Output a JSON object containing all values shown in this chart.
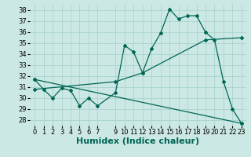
{
  "title": "",
  "xlabel": "Humidex (Indice chaleur)",
  "ylabel": "",
  "background_color": "#cce8e4",
  "grid_color": "#aad4ce",
  "line_color": "#006655",
  "xlim": [
    -0.5,
    23.5
  ],
  "ylim": [
    27.5,
    38.5
  ],
  "yticks": [
    28,
    29,
    30,
    31,
    32,
    33,
    34,
    35,
    36,
    37,
    38
  ],
  "xtick_vals": [
    0,
    1,
    2,
    3,
    4,
    5,
    6,
    7,
    9,
    10,
    11,
    12,
    13,
    14,
    15,
    16,
    17,
    18,
    19,
    20,
    21,
    22,
    23
  ],
  "xtick_labels": [
    "0",
    "1",
    "2",
    "3",
    "4",
    "5",
    "6",
    "7",
    "9",
    "10",
    "11",
    "12",
    "13",
    "14",
    "15",
    "16",
    "17",
    "18",
    "19",
    "20",
    "21",
    "22",
    "23"
  ],
  "series1_x": [
    0,
    1,
    2,
    3,
    4,
    5,
    6,
    7,
    9,
    10,
    11,
    12,
    13,
    14,
    15,
    16,
    17,
    18,
    19,
    20,
    21,
    22,
    23
  ],
  "series1_y": [
    31.7,
    30.8,
    30.0,
    30.9,
    30.7,
    29.3,
    30.0,
    29.3,
    30.5,
    34.8,
    34.2,
    32.3,
    34.5,
    35.9,
    38.1,
    37.2,
    37.5,
    37.5,
    36.0,
    35.3,
    31.5,
    29.0,
    27.7
  ],
  "series2_x": [
    0,
    9,
    12,
    19,
    23
  ],
  "series2_y": [
    30.8,
    31.5,
    32.3,
    35.3,
    35.5
  ],
  "series3_x": [
    0,
    23
  ],
  "series3_y": [
    31.7,
    27.7
  ],
  "xlabel_fontsize": 8,
  "tick_fontsize": 6,
  "marker_size": 2.0,
  "linewidth": 0.9
}
